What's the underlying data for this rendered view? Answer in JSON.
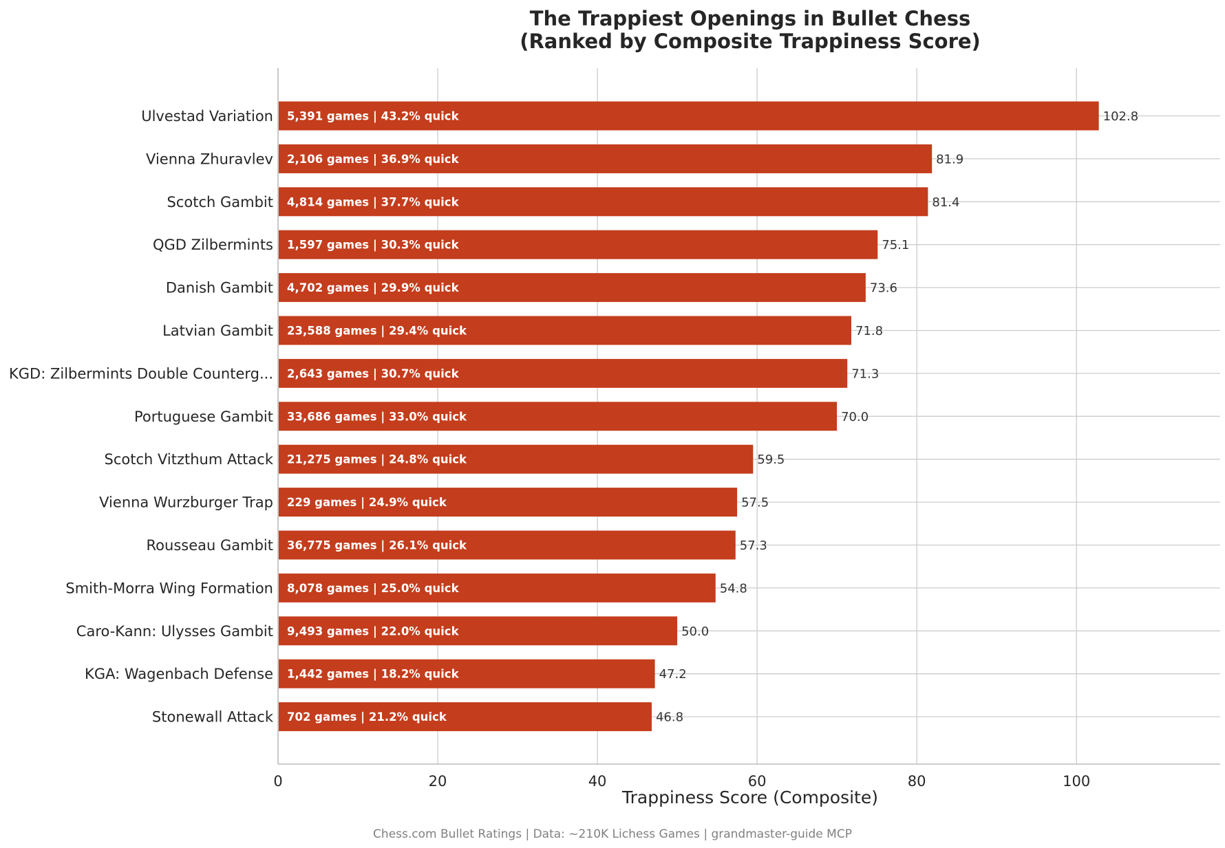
{
  "chart_data": {
    "type": "bar",
    "orientation": "horizontal",
    "title_lines": [
      "The Trappiest Openings in Bullet Chess",
      "(Ranked by Composite Trappiness Score)"
    ],
    "xlabel": "Trappiness Score (Composite)",
    "ylabel": "",
    "xlim": [
      0,
      118
    ],
    "xticks": [
      0,
      20,
      40,
      60,
      80,
      100
    ],
    "grid": true,
    "bar_color": "#c43d1d",
    "categories": [
      "Ulvestad Variation",
      "Vienna Zhuravlev",
      "Scotch Gambit",
      "QGD Zilbermints",
      "Danish Gambit",
      "Latvian Gambit",
      "KGD: Zilbermints Double Counterg...",
      "Portuguese Gambit",
      "Scotch Vitzthum Attack",
      "Vienna Wurzburger Trap",
      "Rousseau Gambit",
      "Smith-Morra Wing Formation",
      "Caro-Kann: Ulysses Gambit",
      "KGA: Wagenbach Defense",
      "Stonewall Attack"
    ],
    "values": [
      102.8,
      81.9,
      81.4,
      75.1,
      73.6,
      71.8,
      71.3,
      70.0,
      59.5,
      57.5,
      57.3,
      54.8,
      50.0,
      47.2,
      46.8
    ],
    "value_labels": [
      "102.8",
      "81.9",
      "81.4",
      "75.1",
      "73.6",
      "71.8",
      "71.3",
      "70.0",
      "59.5",
      "57.5",
      "57.3",
      "54.8",
      "50.0",
      "47.2",
      "46.8"
    ],
    "bar_annotations": [
      "5,391 games | 43.2% quick",
      "2,106 games | 36.9% quick",
      "4,814 games | 37.7% quick",
      "1,597 games | 30.3% quick",
      "4,702 games | 29.9% quick",
      "23,588 games | 29.4% quick",
      "2,643 games | 30.7% quick",
      "33,686 games | 33.0% quick",
      "21,275 games | 24.8% quick",
      "229 games | 24.9% quick",
      "36,775 games | 26.1% quick",
      "8,078 games | 25.0% quick",
      "9,493 games | 22.0% quick",
      "1,442 games | 18.2% quick",
      "702 games | 21.2% quick"
    ]
  },
  "footer": "Chess.com Bullet Ratings | Data: ~210K Lichess Games | grandmaster-guide MCP"
}
